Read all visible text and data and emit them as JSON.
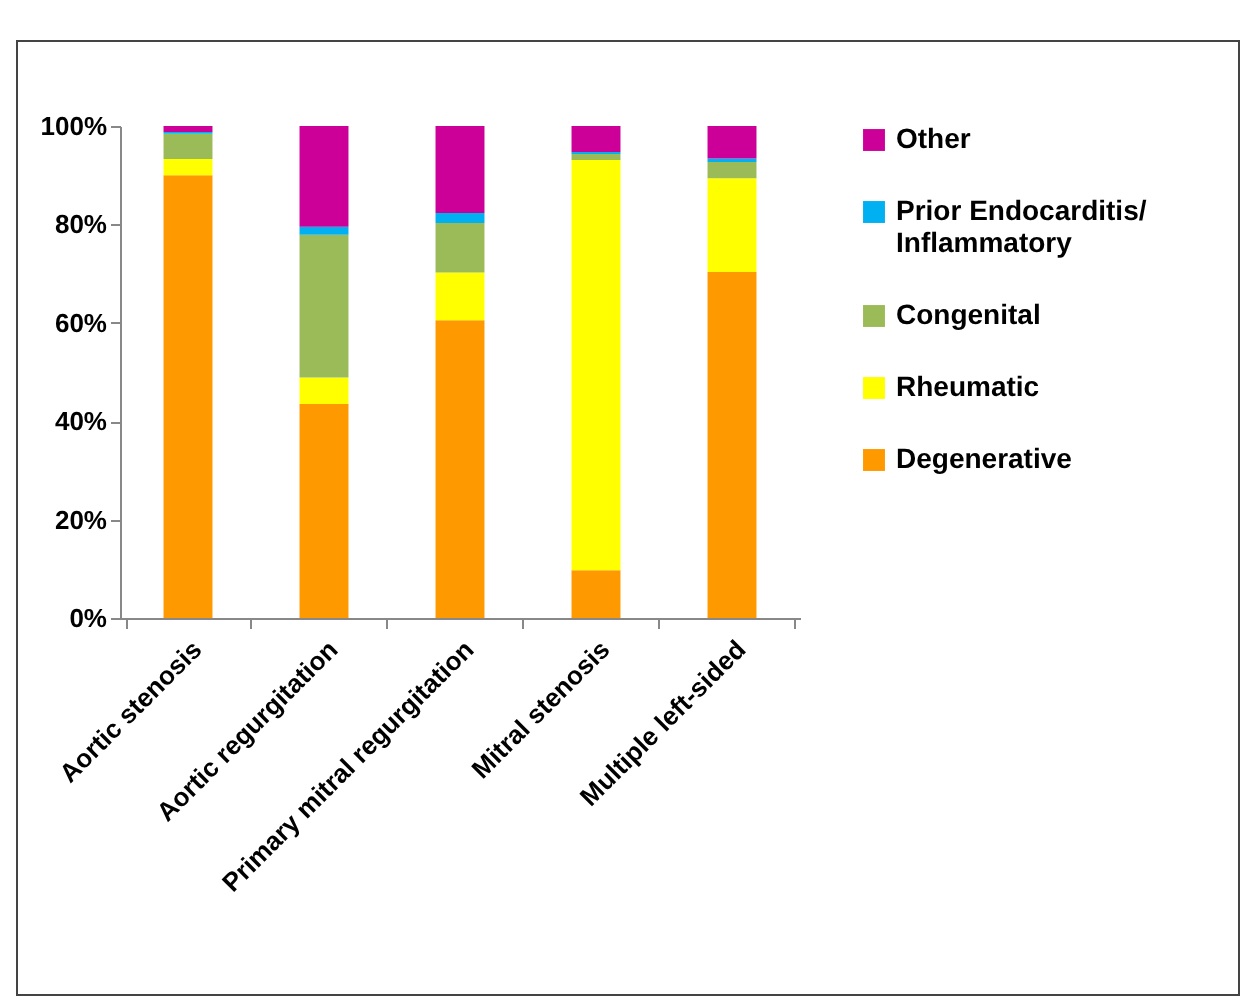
{
  "chart_data": {
    "type": "bar",
    "stacked": true,
    "categories": [
      "Aortic stenosis",
      "Aortic regurgitation",
      "Primary mitral regurgitation",
      "Mitral stenosis",
      "Multiple left-sided"
    ],
    "series": [
      {
        "name": "Degenerative",
        "color": "#ff9900",
        "values": [
          90,
          43.5,
          60.5,
          9.7,
          70.3
        ]
      },
      {
        "name": "Rheumatic",
        "color": "#ffff00",
        "values": [
          3.3,
          5.4,
          9.7,
          83.4,
          19.1
        ]
      },
      {
        "name": "Congenital",
        "color": "#9bbb59",
        "values": [
          5.1,
          29,
          10.1,
          1.2,
          3.3
        ]
      },
      {
        "name": "Prior Endocarditis/Inflammatory",
        "color": "#00b0f0",
        "values": [
          0.4,
          1.6,
          2,
          0.4,
          0.7
        ]
      },
      {
        "name": "Other",
        "color": "#cc0099",
        "values": [
          1.2,
          20.5,
          17.7,
          5.3,
          6.6
        ]
      }
    ],
    "ylim": [
      0,
      100
    ],
    "yticks": [
      {
        "value": 0,
        "label": "0%"
      },
      {
        "value": 20,
        "label": "20%"
      },
      {
        "value": 40,
        "label": "40%"
      },
      {
        "value": 60,
        "label": "60%"
      },
      {
        "value": 80,
        "label": "80%"
      },
      {
        "value": 100,
        "label": "100%"
      }
    ],
    "grid": false,
    "legend": "right"
  }
}
